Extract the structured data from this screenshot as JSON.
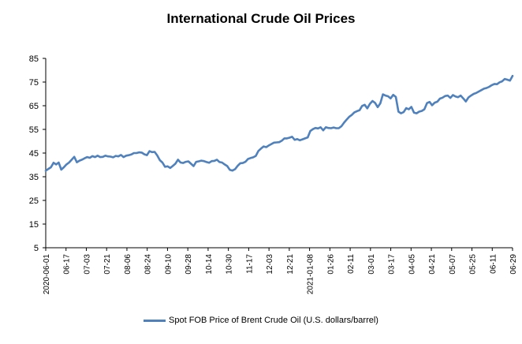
{
  "chart_data": {
    "type": "line",
    "title": "International Crude Oil Prices",
    "xlabel": "",
    "ylabel": "",
    "ylim": [
      5,
      85
    ],
    "yticks": [
      5,
      15,
      25,
      35,
      45,
      55,
      65,
      75,
      85
    ],
    "grid": false,
    "legend_position": "bottom",
    "color": "#4f81bd",
    "x_tick_labels": [
      "2020-06-01",
      "06-17",
      "07-03",
      "07-21",
      "08-06",
      "08-24",
      "09-10",
      "09-28",
      "10-14",
      "10-30",
      "11-17",
      "12-03",
      "12-21",
      "2021-01-08",
      "01-26",
      "02-11",
      "03-01",
      "03-17",
      "04-05",
      "04-21",
      "05-07",
      "05-25",
      "06-11",
      "06-29"
    ],
    "series": [
      {
        "name": "Spot FOB Price of Brent Crude Oil (U.S. dollars/barrel)",
        "values": [
          37.5,
          38.3,
          39.0,
          40.9,
          40.2,
          41.0,
          38.0,
          39.0,
          40.2,
          41.0,
          42.2,
          43.4,
          41.1,
          41.8,
          42.2,
          42.8,
          43.3,
          43.0,
          43.7,
          43.3,
          43.9,
          43.3,
          43.4,
          43.9,
          43.6,
          43.5,
          43.2,
          43.8,
          43.6,
          44.2,
          43.3,
          43.9,
          44.1,
          44.4,
          45.0,
          45.0,
          45.3,
          45.2,
          44.5,
          44.1,
          45.8,
          45.4,
          45.5,
          44.0,
          42.0,
          41.0,
          39.2,
          39.4,
          38.7,
          39.6,
          40.5,
          42.2,
          41.0,
          40.8,
          41.3,
          41.5,
          40.5,
          39.5,
          41.3,
          41.5,
          41.8,
          41.6,
          41.2,
          40.9,
          41.6,
          41.7,
          42.2,
          41.2,
          41.0,
          40.2,
          39.5,
          37.9,
          37.6,
          38.2,
          39.6,
          40.7,
          40.8,
          41.3,
          42.5,
          42.9,
          43.2,
          43.8,
          45.9,
          46.9,
          47.8,
          47.5,
          48.2,
          48.8,
          49.4,
          49.5,
          49.6,
          50.2,
          51.2,
          51.2,
          51.5,
          51.9,
          50.6,
          50.9,
          50.4,
          50.8,
          51.2,
          51.6,
          54.3,
          55.1,
          55.6,
          55.4,
          55.9,
          54.6,
          55.9,
          55.6,
          55.5,
          55.8,
          55.5,
          55.5,
          56.3,
          57.8,
          59.1,
          60.3,
          61.1,
          62.2,
          62.7,
          63.1,
          64.9,
          65.4,
          63.9,
          65.8,
          67.0,
          66.2,
          64.4,
          66.0,
          69.8,
          69.3,
          69.0,
          68.1,
          69.6,
          68.7,
          62.5,
          61.8,
          62.3,
          64.0,
          63.5,
          64.5,
          62.1,
          61.8,
          62.5,
          62.8,
          63.5,
          66.1,
          66.6,
          65.2,
          66.3,
          66.7,
          68.0,
          68.4,
          69.1,
          69.3,
          68.3,
          69.5,
          68.9,
          68.6,
          69.3,
          68.1,
          66.8,
          68.5,
          69.3,
          70.0,
          70.4,
          71.0,
          71.6,
          72.2,
          72.5,
          73.0,
          73.7,
          74.2,
          74.1,
          74.9,
          75.3,
          76.3,
          76.0,
          75.6,
          77.6
        ]
      }
    ]
  }
}
